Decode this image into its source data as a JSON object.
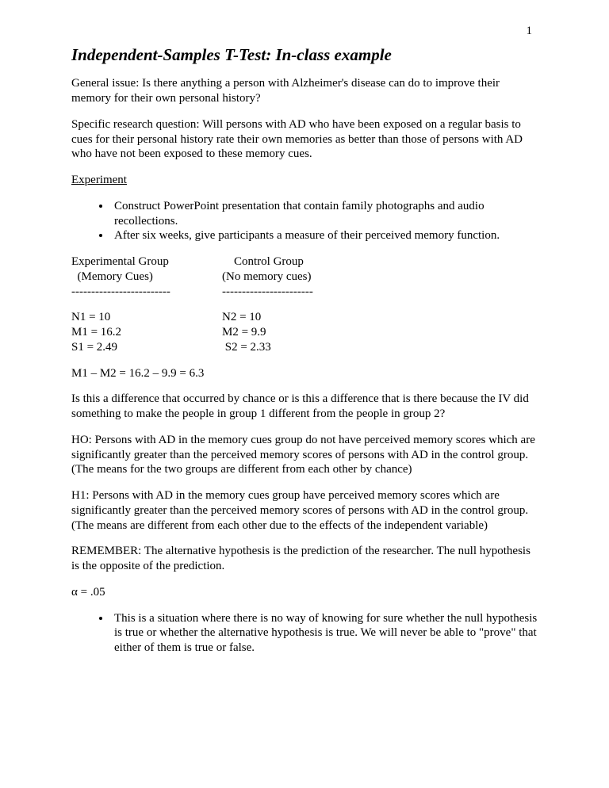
{
  "page_number": "1",
  "title": "Independent-Samples T-Test: In-class example",
  "general_issue": "General issue:  Is there anything a person with Alzheimer's disease can do to improve their memory for their own personal history?",
  "specific_question": "Specific research question:  Will persons with AD who have been exposed on a regular basis to cues for their personal history rate their own memories as better than those of persons with AD who have not been exposed to these memory cues.",
  "experiment_label": "Experiment",
  "bullets_experiment": [
    "Construct PowerPoint presentation that contain family photographs and audio recollections.",
    "After six weeks, give participants a measure of their perceived memory function."
  ],
  "group1": {
    "title": "Experimental Group",
    "subtitle": "  (Memory Cues)",
    "dashes": "-------------------------",
    "n": "N1 = 10",
    "m": "M1 = 16.2",
    "s": "S1 = 2.49"
  },
  "group2": {
    "title": "    Control Group",
    "subtitle": "(No memory cues)",
    "dashes": "-----------------------",
    "n": "N2 = 10",
    "m": "M2 = 9.9",
    "s": " S2 = 2.33"
  },
  "diff": "M1 – M2 = 16.2 – 9.9 = 6.3",
  "chance_q": "Is this a difference that occurred by chance or is this a difference that is there because the IV did something to make the people in group 1 different from the people in group 2?",
  "h0": "HO: Persons with AD in the memory cues group do not have perceived memory scores which are significantly greater than the perceived memory scores of persons with AD in the control group. (The means for the two groups are different from each other by chance)",
  "h1": "H1: Persons with AD in the memory cues group have perceived memory scores which are significantly greater than the perceived memory scores of persons with AD in the control group. (The means are different from each other due to the effects of the independent variable)",
  "remember": "REMEMBER: The alternative hypothesis is the prediction of the researcher. The null hypothesis is the opposite of the prediction.",
  "alpha": "α = .05",
  "bullets_alpha": [
    "This is a situation where there is no way of knowing for sure whether the null hypothesis is true or whether the alternative hypothesis is true. We will never be able to \"prove\" that either of them is true or false."
  ]
}
